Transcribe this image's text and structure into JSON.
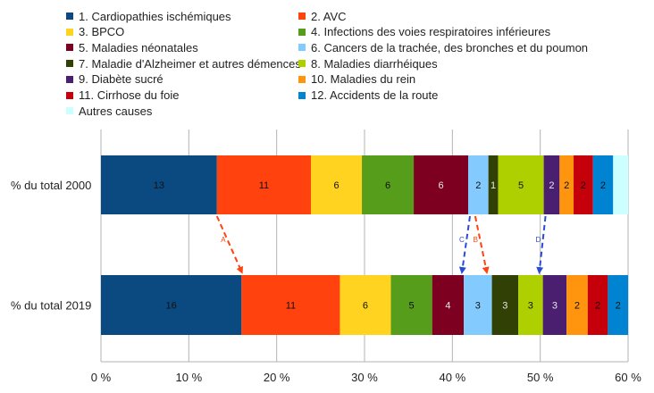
{
  "chart_data": {
    "type": "bar",
    "orientation": "horizontal",
    "stacked": true,
    "categories": [
      "% du total 2000",
      "% du total 2019"
    ],
    "xlim": [
      0,
      60
    ],
    "xticks": [
      0,
      10,
      20,
      30,
      40,
      50,
      60
    ],
    "xtick_labels": [
      "0 %",
      "10 %",
      "20 %",
      "30 %",
      "40 %",
      "50 %",
      "60 %"
    ],
    "grid": "vertical",
    "legend_position": "top",
    "series": [
      {
        "name": "1. Cardiopathies ischémiques",
        "color": "#0b4a80",
        "values": [
          13.2,
          16.0
        ],
        "labels": [
          "13",
          "16"
        ]
      },
      {
        "name": "2. AVC",
        "color": "#ff420e",
        "values": [
          10.7,
          11.2
        ],
        "labels": [
          "11",
          "11"
        ]
      },
      {
        "name": "3. BPCO",
        "color": "#ffd320",
        "values": [
          5.8,
          5.8
        ],
        "labels": [
          "6",
          "6"
        ]
      },
      {
        "name": "4. Infections des voies respiratoires inférieures",
        "color": "#579d1c",
        "values": [
          5.9,
          4.7
        ],
        "labels": [
          "6",
          "5"
        ]
      },
      {
        "name": "5. Maladies néonatales",
        "color": "#7e0021",
        "values": [
          6.2,
          3.6
        ],
        "labels": [
          "6",
          "4"
        ]
      },
      {
        "name": "6. Cancers de la trachée, des bronches  et du poumon",
        "color": "#83caff",
        "values": [
          2.3,
          3.2
        ],
        "labels": [
          "2",
          "3"
        ]
      },
      {
        "name": "7. Maladie d'Alzheimer et autres démences",
        "color": "#314004",
        "values": [
          1.1,
          3.0
        ],
        "labels": [
          "1",
          "3"
        ]
      },
      {
        "name": "8. Maladies diarrhéiques",
        "color": "#aecf00",
        "values": [
          5.2,
          2.8
        ],
        "labels": [
          "5",
          "3"
        ]
      },
      {
        "name": "9. Diabète sucré",
        "color": "#4b1f6f",
        "values": [
          1.8,
          2.7
        ],
        "labels": [
          "2",
          "3"
        ]
      },
      {
        "name": "10. Maladies du rein",
        "color": "#ff950e",
        "values": [
          1.6,
          2.4
        ],
        "labels": [
          "2",
          "2"
        ]
      },
      {
        "name": "11. Cirrhose du foie",
        "color": "#c5000b",
        "values": [
          2.2,
          2.3
        ],
        "labels": [
          "2",
          "2"
        ]
      },
      {
        "name": "12. Accidents de la route",
        "color": "#0084d1",
        "values": [
          2.3,
          2.3
        ],
        "labels": [
          "2",
          "2"
        ]
      },
      {
        "name": "Autres causes",
        "color": "#ccffff",
        "values": [
          1.7,
          0
        ],
        "labels": [
          "",
          ""
        ]
      }
    ],
    "annotations": [
      {
        "label": "A",
        "color": "#ff420e",
        "from": [
          13.2,
          "% du total 2000"
        ],
        "to": [
          16.0,
          "% du total 2019"
        ]
      },
      {
        "label": "B",
        "color": "#ff420e",
        "from": [
          42.6,
          "% du total 2000"
        ],
        "to": [
          43.9,
          "% du total 2019"
        ]
      },
      {
        "label": "C",
        "color": "#2a4bd7",
        "from": [
          42.0,
          "% du total 2000"
        ],
        "to": [
          41.1,
          "% du total 2019"
        ]
      },
      {
        "label": "D",
        "color": "#2a4bd7",
        "from": [
          50.6,
          "% du total 2000"
        ],
        "to": [
          49.9,
          "% du total 2019"
        ]
      }
    ]
  }
}
